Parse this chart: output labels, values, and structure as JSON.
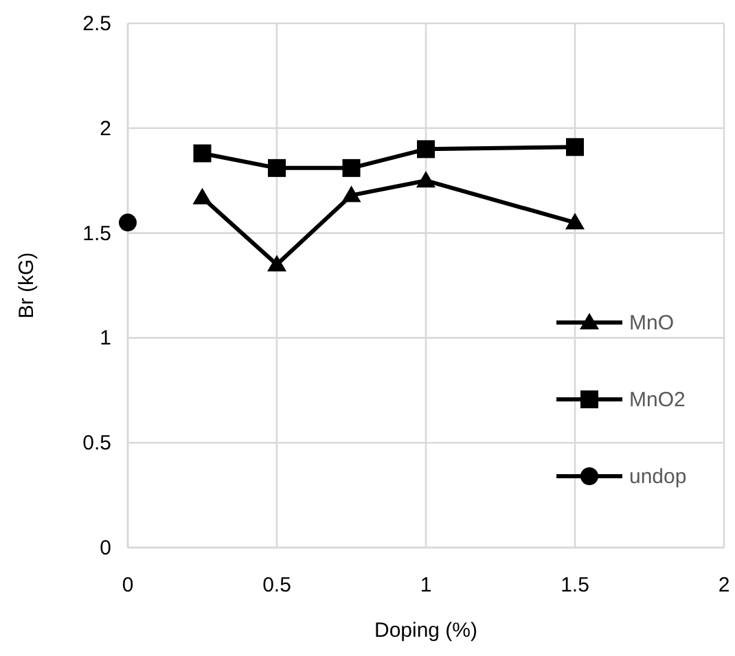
{
  "chart_data": {
    "type": "line",
    "xlabel": "Doping (%)",
    "ylabel": "Br (kG)",
    "xlim": [
      0,
      2
    ],
    "ylim": [
      0,
      2.5
    ],
    "xticks": [
      0,
      0.5,
      1,
      1.5,
      2
    ],
    "yticks": [
      0,
      0.5,
      1,
      1.5,
      2,
      2.5
    ],
    "grid": true,
    "legend": "right",
    "line_style": "solid",
    "series": [
      {
        "name": "MnO",
        "color": "#000000",
        "marker": "triangle",
        "x": [
          0.25,
          0.5,
          0.75,
          1,
          1.5
        ],
        "values": [
          1.67,
          1.35,
          1.68,
          1.75,
          1.55
        ]
      },
      {
        "name": "MnO2",
        "color": "#000000",
        "marker": "square",
        "x": [
          0.25,
          0.5,
          0.75,
          1,
          1.5
        ],
        "values": [
          1.88,
          1.81,
          1.81,
          1.9,
          1.91
        ]
      },
      {
        "name": "undop",
        "color": "#000000",
        "marker": "circle",
        "x": [
          0
        ],
        "values": [
          1.55
        ]
      }
    ]
  }
}
